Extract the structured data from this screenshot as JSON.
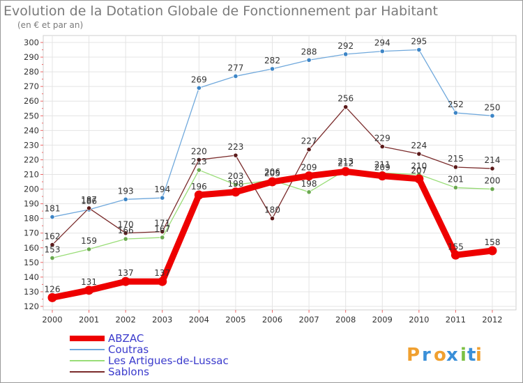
{
  "chart_data": {
    "type": "line",
    "title": "Evolution de la Dotation Globale de Fonctionnement par Habitant",
    "subtitle": "(en € et par an)",
    "xlabel": "",
    "ylabel": "",
    "ylim": [
      120,
      300
    ],
    "yticks": [
      "120",
      "130",
      "140",
      "150",
      "160",
      "170",
      "180",
      "190",
      "200",
      "210",
      "220",
      "230",
      "240",
      "250",
      "260",
      "270",
      "280",
      "290",
      "300"
    ],
    "categories": [
      "2000",
      "2001",
      "2002",
      "2003",
      "2004",
      "2005",
      "2006",
      "2007",
      "2008",
      "2009",
      "2010",
      "2011",
      "2012"
    ],
    "grid": true,
    "legend_position": "bottom-left",
    "series": [
      {
        "name": "ABZAC",
        "color": "#ee0000",
        "values": [
          126,
          131,
          137,
          137,
          196,
          198,
          205,
          209,
          212,
          209,
          207,
          155,
          158
        ]
      },
      {
        "name": "Coutras",
        "color": "#6fa8dc",
        "values": [
          181,
          186,
          193,
          194,
          269,
          277,
          282,
          288,
          292,
          294,
          295,
          252,
          250
        ]
      },
      {
        "name": "Les Artigues-de-Lussac",
        "color": "#99dd77",
        "values": [
          153,
          159,
          166,
          167,
          213,
          203,
          206,
          198,
          213,
          211,
          210,
          201,
          200
        ]
      },
      {
        "name": "Sablons",
        "color": "#7a2b2b",
        "values": [
          162,
          187,
          170,
          171,
          220,
          223,
          180,
          227,
          256,
          229,
          224,
          215,
          214
        ]
      }
    ],
    "label_order": [
      2,
      3,
      1,
      0
    ]
  },
  "logo": {
    "text": "Proxiti",
    "letters": [
      "P",
      "r",
      "o",
      "x",
      "i",
      "t",
      "i"
    ]
  }
}
